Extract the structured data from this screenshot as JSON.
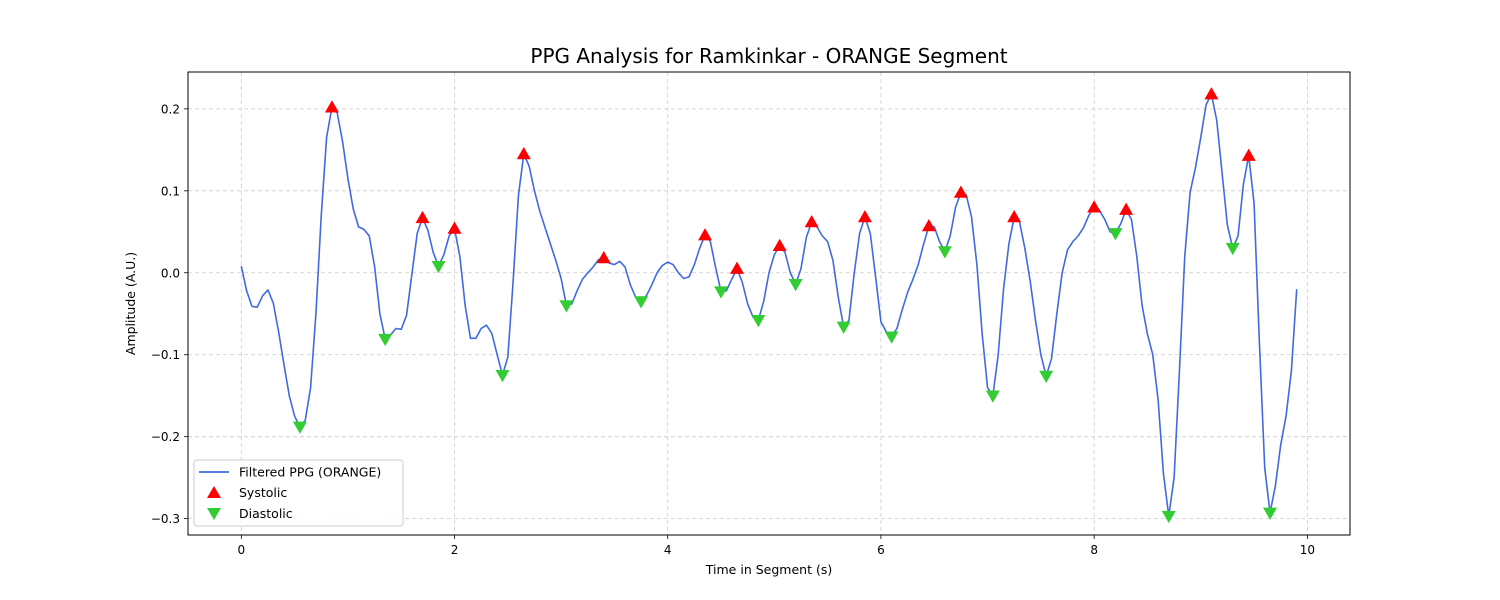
{
  "chart_data": {
    "type": "line",
    "title": "PPG Analysis for Ramkinkar - ORANGE Segment",
    "xlabel": "Time in Segment (s)",
    "ylabel": "Amplitude (A.U.)",
    "xlim": [
      -0.5,
      10.4
    ],
    "ylim": [
      -0.32,
      0.245
    ],
    "xticks": [
      0,
      2,
      4,
      6,
      8,
      10
    ],
    "yticks": [
      -0.3,
      -0.2,
      -0.1,
      0.0,
      0.1,
      0.2
    ],
    "ytick_labels": [
      "−0.3",
      "−0.2",
      "−0.1",
      "0.0",
      "0.1",
      "0.2"
    ],
    "grid": true,
    "legend_position": "lower-left",
    "colors": {
      "line": "#4169e1",
      "systolic": "#ff0000",
      "diastolic": "#32cd32"
    },
    "series": [
      {
        "name": "Filtered PPG (ORANGE)",
        "kind": "line",
        "points": [
          [
            0.0,
            0.008
          ],
          [
            0.05,
            -0.022
          ],
          [
            0.1,
            -0.041
          ],
          [
            0.15,
            -0.042
          ],
          [
            0.2,
            -0.028
          ],
          [
            0.25,
            -0.021
          ],
          [
            0.3,
            -0.037
          ],
          [
            0.35,
            -0.072
          ],
          [
            0.4,
            -0.112
          ],
          [
            0.45,
            -0.15
          ],
          [
            0.5,
            -0.175
          ],
          [
            0.55,
            -0.188
          ],
          [
            0.6,
            -0.18
          ],
          [
            0.65,
            -0.14
          ],
          [
            0.7,
            -0.05
          ],
          [
            0.75,
            0.07
          ],
          [
            0.8,
            0.165
          ],
          [
            0.85,
            0.202
          ],
          [
            0.9,
            0.195
          ],
          [
            0.95,
            0.16
          ],
          [
            1.0,
            0.115
          ],
          [
            1.05,
            0.078
          ],
          [
            1.1,
            0.056
          ],
          [
            1.15,
            0.053
          ],
          [
            1.2,
            0.045
          ],
          [
            1.25,
            0.008
          ],
          [
            1.3,
            -0.05
          ],
          [
            1.35,
            -0.081
          ],
          [
            1.4,
            -0.076
          ],
          [
            1.45,
            -0.068
          ],
          [
            1.5,
            -0.069
          ],
          [
            1.55,
            -0.052
          ],
          [
            1.6,
            -0.002
          ],
          [
            1.65,
            0.048
          ],
          [
            1.7,
            0.067
          ],
          [
            1.75,
            0.052
          ],
          [
            1.8,
            0.025
          ],
          [
            1.85,
            0.008
          ],
          [
            1.9,
            0.022
          ],
          [
            1.95,
            0.045
          ],
          [
            2.0,
            0.054
          ],
          [
            2.05,
            0.02
          ],
          [
            2.1,
            -0.04
          ],
          [
            2.15,
            -0.08
          ],
          [
            2.2,
            -0.08
          ],
          [
            2.25,
            -0.068
          ],
          [
            2.3,
            -0.064
          ],
          [
            2.35,
            -0.074
          ],
          [
            2.4,
            -0.1
          ],
          [
            2.45,
            -0.125
          ],
          [
            2.5,
            -0.103
          ],
          [
            2.55,
            -0.01
          ],
          [
            2.6,
            0.095
          ],
          [
            2.65,
            0.145
          ],
          [
            2.7,
            0.13
          ],
          [
            2.75,
            0.1
          ],
          [
            2.8,
            0.075
          ],
          [
            2.85,
            0.055
          ],
          [
            2.9,
            0.035
          ],
          [
            2.95,
            0.015
          ],
          [
            3.0,
            -0.007
          ],
          [
            3.05,
            -0.04
          ],
          [
            3.1,
            -0.038
          ],
          [
            3.15,
            -0.022
          ],
          [
            3.2,
            -0.008
          ],
          [
            3.25,
            0.0
          ],
          [
            3.3,
            0.007
          ],
          [
            3.35,
            0.016
          ],
          [
            3.4,
            0.018
          ],
          [
            3.45,
            0.012
          ],
          [
            3.5,
            0.01
          ],
          [
            3.55,
            0.014
          ],
          [
            3.6,
            0.007
          ],
          [
            3.65,
            -0.015
          ],
          [
            3.7,
            -0.03
          ],
          [
            3.75,
            -0.035
          ],
          [
            3.8,
            -0.028
          ],
          [
            3.85,
            -0.015
          ],
          [
            3.9,
            0.0
          ],
          [
            3.95,
            0.009
          ],
          [
            4.0,
            0.013
          ],
          [
            4.05,
            0.01
          ],
          [
            4.1,
            0.0
          ],
          [
            4.15,
            -0.007
          ],
          [
            4.2,
            -0.005
          ],
          [
            4.25,
            0.01
          ],
          [
            4.3,
            0.03
          ],
          [
            4.35,
            0.046
          ],
          [
            4.4,
            0.038
          ],
          [
            4.45,
            0.006
          ],
          [
            4.5,
            -0.023
          ],
          [
            4.55,
            -0.022
          ],
          [
            4.6,
            -0.008
          ],
          [
            4.65,
            0.005
          ],
          [
            4.7,
            -0.012
          ],
          [
            4.75,
            -0.038
          ],
          [
            4.8,
            -0.054
          ],
          [
            4.85,
            -0.058
          ],
          [
            4.9,
            -0.035
          ],
          [
            4.95,
            0.0
          ],
          [
            5.0,
            0.022
          ],
          [
            5.05,
            0.033
          ],
          [
            5.1,
            0.025
          ],
          [
            5.15,
            0.0
          ],
          [
            5.2,
            -0.014
          ],
          [
            5.25,
            0.005
          ],
          [
            5.3,
            0.043
          ],
          [
            5.35,
            0.062
          ],
          [
            5.4,
            0.056
          ],
          [
            5.45,
            0.045
          ],
          [
            5.5,
            0.038
          ],
          [
            5.55,
            0.015
          ],
          [
            5.6,
            -0.03
          ],
          [
            5.65,
            -0.066
          ],
          [
            5.7,
            -0.058
          ],
          [
            5.75,
            0.0
          ],
          [
            5.8,
            0.048
          ],
          [
            5.85,
            0.068
          ],
          [
            5.9,
            0.048
          ],
          [
            5.95,
            -0.005
          ],
          [
            6.0,
            -0.06
          ],
          [
            6.05,
            -0.072
          ],
          [
            6.1,
            -0.078
          ],
          [
            6.15,
            -0.068
          ],
          [
            6.2,
            -0.045
          ],
          [
            6.25,
            -0.024
          ],
          [
            6.3,
            -0.008
          ],
          [
            6.35,
            0.01
          ],
          [
            6.4,
            0.035
          ],
          [
            6.45,
            0.057
          ],
          [
            6.5,
            0.056
          ],
          [
            6.55,
            0.038
          ],
          [
            6.6,
            0.026
          ],
          [
            6.65,
            0.045
          ],
          [
            6.7,
            0.08
          ],
          [
            6.75,
            0.098
          ],
          [
            6.8,
            0.095
          ],
          [
            6.85,
            0.068
          ],
          [
            6.9,
            0.01
          ],
          [
            6.95,
            -0.075
          ],
          [
            7.0,
            -0.14
          ],
          [
            7.05,
            -0.15
          ],
          [
            7.1,
            -0.1
          ],
          [
            7.15,
            -0.02
          ],
          [
            7.2,
            0.035
          ],
          [
            7.25,
            0.068
          ],
          [
            7.3,
            0.062
          ],
          [
            7.35,
            0.03
          ],
          [
            7.4,
            -0.01
          ],
          [
            7.45,
            -0.058
          ],
          [
            7.5,
            -0.1
          ],
          [
            7.55,
            -0.126
          ],
          [
            7.6,
            -0.105
          ],
          [
            7.65,
            -0.05
          ],
          [
            7.7,
            0.0
          ],
          [
            7.75,
            0.028
          ],
          [
            7.8,
            0.038
          ],
          [
            7.85,
            0.045
          ],
          [
            7.9,
            0.055
          ],
          [
            7.95,
            0.07
          ],
          [
            8.0,
            0.08
          ],
          [
            8.05,
            0.076
          ],
          [
            8.1,
            0.065
          ],
          [
            8.15,
            0.05
          ],
          [
            8.2,
            0.048
          ],
          [
            8.25,
            0.06
          ],
          [
            8.3,
            0.077
          ],
          [
            8.35,
            0.065
          ],
          [
            8.4,
            0.02
          ],
          [
            8.45,
            -0.04
          ],
          [
            8.5,
            -0.075
          ],
          [
            8.55,
            -0.1
          ],
          [
            8.6,
            -0.155
          ],
          [
            8.65,
            -0.245
          ],
          [
            8.7,
            -0.297
          ],
          [
            8.75,
            -0.25
          ],
          [
            8.8,
            -0.12
          ],
          [
            8.85,
            0.02
          ],
          [
            8.9,
            0.098
          ],
          [
            8.95,
            0.128
          ],
          [
            9.0,
            0.165
          ],
          [
            9.05,
            0.205
          ],
          [
            9.1,
            0.218
          ],
          [
            9.15,
            0.186
          ],
          [
            9.2,
            0.122
          ],
          [
            9.25,
            0.058
          ],
          [
            9.3,
            0.03
          ],
          [
            9.35,
            0.045
          ],
          [
            9.4,
            0.108
          ],
          [
            9.45,
            0.143
          ],
          [
            9.5,
            0.085
          ],
          [
            9.55,
            -0.085
          ],
          [
            9.6,
            -0.238
          ],
          [
            9.65,
            -0.293
          ],
          [
            9.7,
            -0.26
          ],
          [
            9.75,
            -0.21
          ],
          [
            9.8,
            -0.175
          ],
          [
            9.85,
            -0.12
          ],
          [
            9.9,
            -0.02
          ]
        ]
      },
      {
        "name": "Systolic",
        "kind": "marker-up",
        "points": [
          [
            0.85,
            0.202
          ],
          [
            1.7,
            0.067
          ],
          [
            2.0,
            0.054
          ],
          [
            2.65,
            0.145
          ],
          [
            3.4,
            0.018
          ],
          [
            4.35,
            0.046
          ],
          [
            4.65,
            0.005
          ],
          [
            5.05,
            0.033
          ],
          [
            5.35,
            0.062
          ],
          [
            5.85,
            0.068
          ],
          [
            6.45,
            0.057
          ],
          [
            6.75,
            0.098
          ],
          [
            7.25,
            0.068
          ],
          [
            8.0,
            0.08
          ],
          [
            8.3,
            0.077
          ],
          [
            9.1,
            0.218
          ],
          [
            9.45,
            0.143
          ]
        ]
      },
      {
        "name": "Diastolic",
        "kind": "marker-down",
        "points": [
          [
            0.55,
            -0.188
          ],
          [
            1.35,
            -0.081
          ],
          [
            1.85,
            0.008
          ],
          [
            2.45,
            -0.125
          ],
          [
            3.05,
            -0.04
          ],
          [
            3.75,
            -0.035
          ],
          [
            4.5,
            -0.023
          ],
          [
            4.85,
            -0.058
          ],
          [
            5.2,
            -0.014
          ],
          [
            5.65,
            -0.066
          ],
          [
            6.1,
            -0.078
          ],
          [
            6.6,
            0.026
          ],
          [
            7.05,
            -0.15
          ],
          [
            7.55,
            -0.126
          ],
          [
            8.2,
            0.048
          ],
          [
            8.7,
            -0.297
          ],
          [
            9.3,
            0.03
          ],
          [
            9.65,
            -0.293
          ]
        ]
      }
    ]
  }
}
